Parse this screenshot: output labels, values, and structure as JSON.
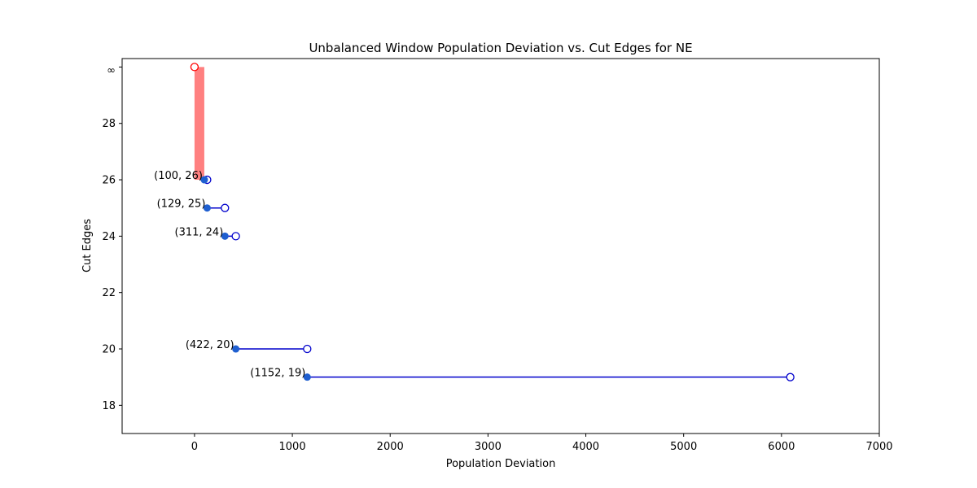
{
  "chart_data": {
    "type": "scatter",
    "title": "Unbalanced Window Population Deviation vs. Cut Edges for NE",
    "xlabel": "Population Deviation",
    "ylabel": "Cut Edges",
    "xlim": [
      -740,
      7000
    ],
    "ylim": [
      17,
      30.3
    ],
    "xticks": [
      0,
      1000,
      2000,
      3000,
      4000,
      5000,
      6000,
      7000
    ],
    "yticks": [
      18,
      20,
      22,
      24,
      26,
      28
    ],
    "infinity_tick": {
      "value": 30,
      "label": "∞"
    },
    "grid": false,
    "colors": {
      "window": "#0000cc",
      "closed_point": "#1f5fd0",
      "infinity": "#ff0000",
      "infinity_bar": "#ff8080"
    },
    "windows": [
      {
        "cut_edges": 26,
        "start": 100,
        "end": 129,
        "label": "(100, 26)"
      },
      {
        "cut_edges": 25,
        "start": 129,
        "end": 311,
        "label": "(129, 25)"
      },
      {
        "cut_edges": 24,
        "start": 311,
        "end": 422,
        "label": "(311, 24)"
      },
      {
        "cut_edges": 20,
        "start": 422,
        "end": 1152,
        "label": "(422, 20)"
      },
      {
        "cut_edges": 19,
        "start": 1152,
        "end": 6090,
        "label": "(1152, 19)"
      }
    ],
    "infinity_window": {
      "start": 0,
      "end": 100,
      "y_from": 26,
      "y_to": 30
    }
  }
}
